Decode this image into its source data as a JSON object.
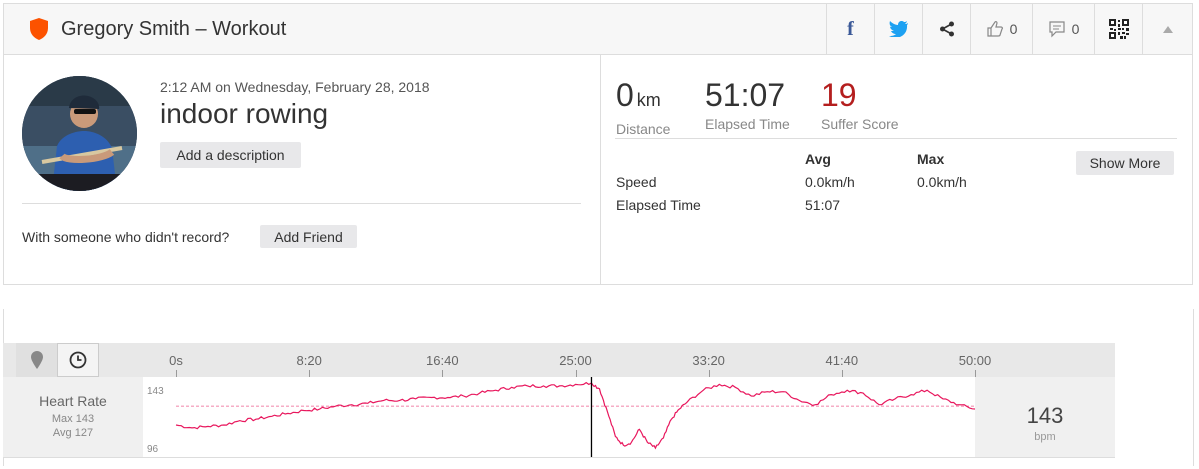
{
  "header": {
    "title": "Gregory Smith – Workout",
    "like_count": "0",
    "comment_count": "0"
  },
  "activity": {
    "datetime": "2:12 AM on Wednesday, February 28, 2018",
    "name": "indoor rowing",
    "add_description": "Add a description",
    "with_someone": "With someone who didn't record?",
    "add_friend": "Add Friend"
  },
  "stats": {
    "distance_value": "0",
    "distance_unit": "km",
    "distance_label": "Distance",
    "elapsed_value": "51:07",
    "elapsed_label": "Elapsed Time",
    "suffer_value": "19",
    "suffer_label": "Suffer Score",
    "suffer_color": "#b41e1e"
  },
  "table": {
    "col_avg": "Avg",
    "col_max": "Max",
    "show_more": "Show More",
    "rows": [
      {
        "label": "Speed",
        "avg": "0.0km/h",
        "max": "0.0km/h"
      },
      {
        "label": "Elapsed Time",
        "avg": "51:07",
        "max": ""
      }
    ]
  },
  "chart": {
    "ticks": [
      "0s",
      "8:20",
      "16:40",
      "25:00",
      "33:20",
      "41:40",
      "50:00"
    ],
    "y_max_label": "143",
    "y_min_label": "96",
    "series_label": "Heart Rate",
    "max_text": "Max 143",
    "avg_text": "Avg 127",
    "current_value": "143",
    "current_unit": "bpm",
    "line_color": "#e8175d"
  },
  "chart_data": {
    "type": "line",
    "xlabel": "",
    "ylabel": "",
    "x_tick_labels": [
      "0s",
      "8:20",
      "16:40",
      "25:00",
      "33:20",
      "41:40",
      "50:00"
    ],
    "x_unit": "seconds",
    "ylim": [
      96,
      143
    ],
    "avg_line": 127,
    "cursor_x": 1560,
    "series": [
      {
        "name": "Heart Rate",
        "x": [
          0,
          60,
          120,
          180,
          240,
          300,
          360,
          420,
          480,
          540,
          600,
          660,
          720,
          780,
          840,
          900,
          960,
          1020,
          1080,
          1140,
          1200,
          1260,
          1320,
          1380,
          1440,
          1500,
          1560,
          1590,
          1620,
          1650,
          1680,
          1710,
          1740,
          1770,
          1800,
          1830,
          1860,
          1890,
          1920,
          1980,
          2040,
          2100,
          2160,
          2220,
          2280,
          2340,
          2400,
          2460,
          2520,
          2580,
          2640,
          2700,
          2760,
          2820,
          2880,
          2940,
          3000,
          3060,
          3067
        ],
        "y": [
          114,
          112,
          113,
          114,
          117,
          118,
          120,
          122,
          124,
          125,
          127,
          128,
          129,
          131,
          131,
          132,
          133,
          133,
          134,
          136,
          138,
          140,
          141,
          141,
          141,
          142,
          143,
          139,
          123,
          106,
          100,
          102,
          111,
          102,
          98,
          105,
          118,
          125,
          130,
          138,
          142,
          140,
          134,
          137,
          137,
          131,
          128,
          135,
          138,
          136,
          128,
          132,
          135,
          138,
          132,
          128,
          125,
          123,
          116
        ]
      }
    ]
  }
}
